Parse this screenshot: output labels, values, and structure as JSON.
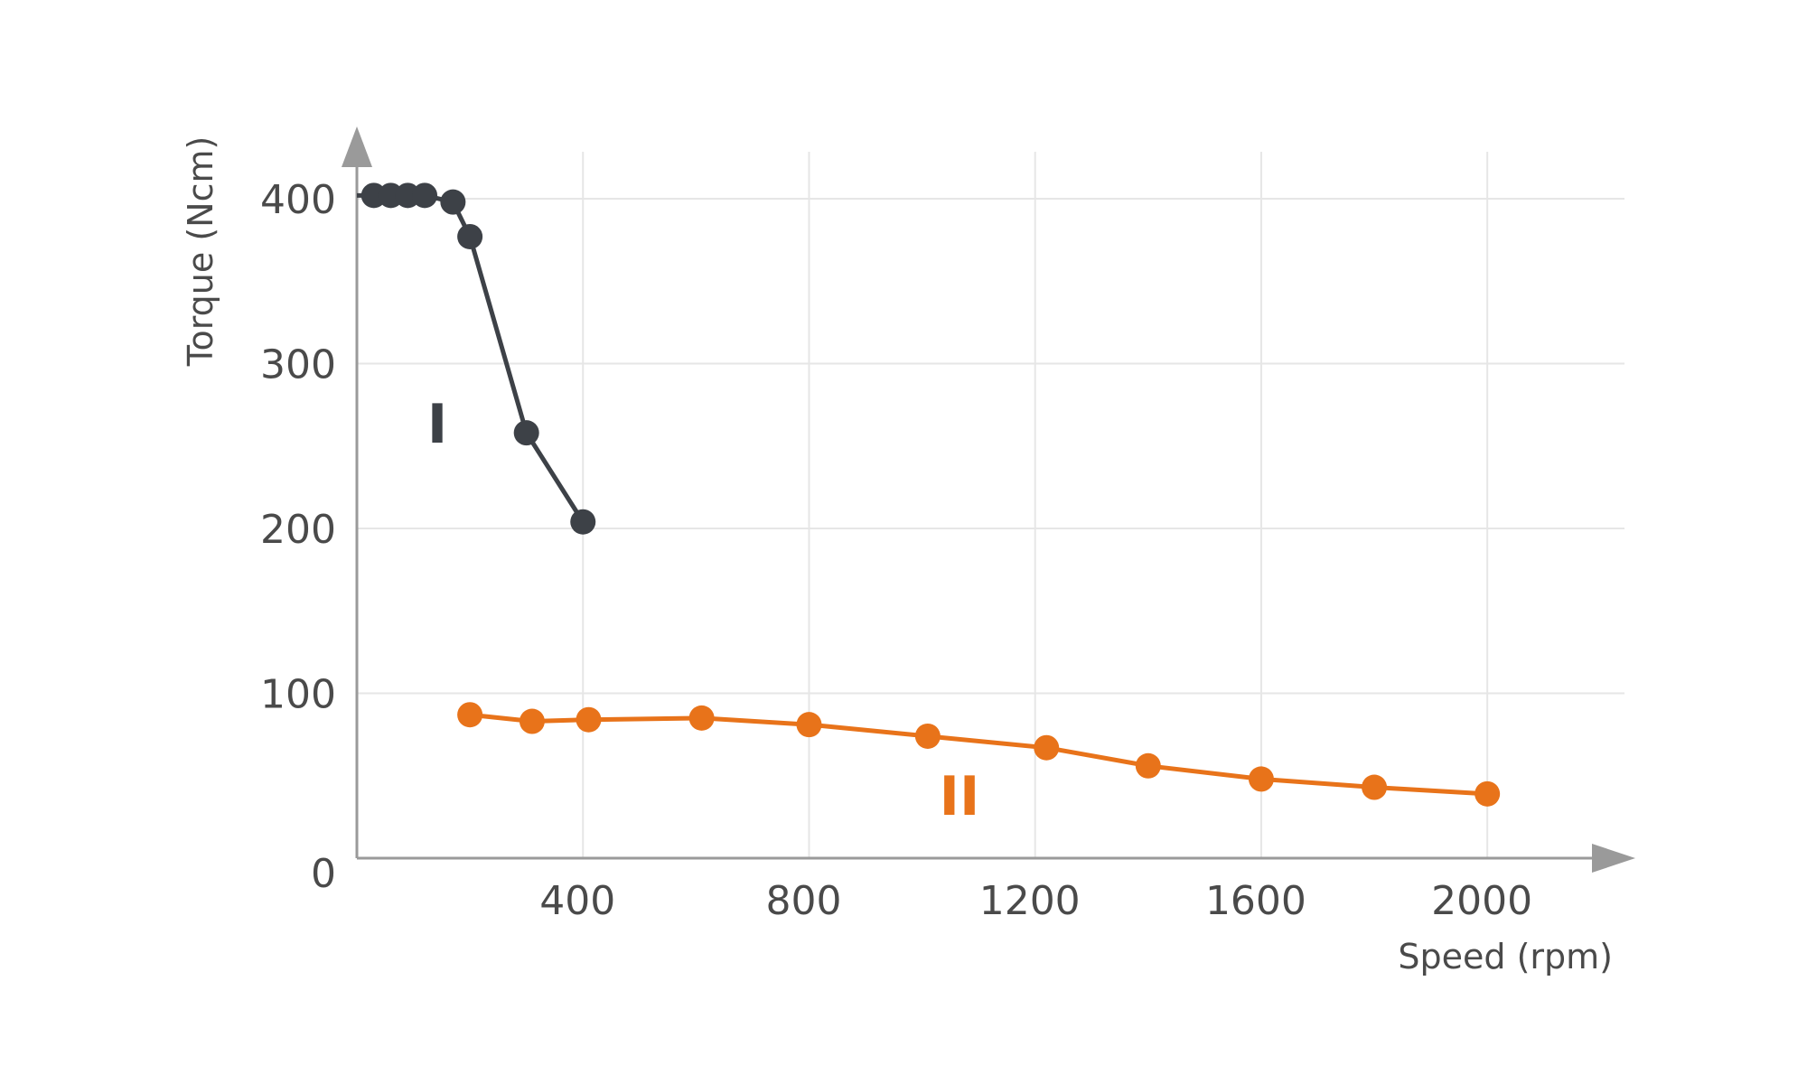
{
  "colors": {
    "series_I": "#3d4147",
    "series_II": "#e8731a",
    "axis": "#9a9a9a",
    "grid": "#e6e6e6",
    "text": "#4a4a4a"
  },
  "chart_data": {
    "type": "line",
    "xlabel": "Speed (rpm)",
    "ylabel": "Torque (Ncm)",
    "xlim": [
      0,
      2150
    ],
    "ylim": [
      0,
      420
    ],
    "x_ticks": [
      400,
      800,
      1200,
      1600,
      2000
    ],
    "x_tick_labels": [
      "400",
      "800",
      "1200",
      "1600",
      "2000"
    ],
    "y_ticks": [
      0,
      100,
      200,
      300,
      400
    ],
    "y_tick_labels": [
      "0",
      "100",
      "200",
      "300",
      "400"
    ],
    "grid": true,
    "series": [
      {
        "name": "I",
        "x": [
          30,
          60,
          90,
          120,
          170,
          200,
          300,
          400
        ],
        "y": [
          402,
          402,
          402,
          402,
          398,
          377,
          258,
          204
        ]
      },
      {
        "name": "II",
        "x": [
          200,
          310,
          410,
          610,
          800,
          1010,
          1220,
          1400,
          1600,
          1800,
          2000
        ],
        "y": [
          87,
          83,
          84,
          85,
          81,
          74,
          67,
          56,
          48,
          43,
          39
        ]
      }
    ]
  }
}
